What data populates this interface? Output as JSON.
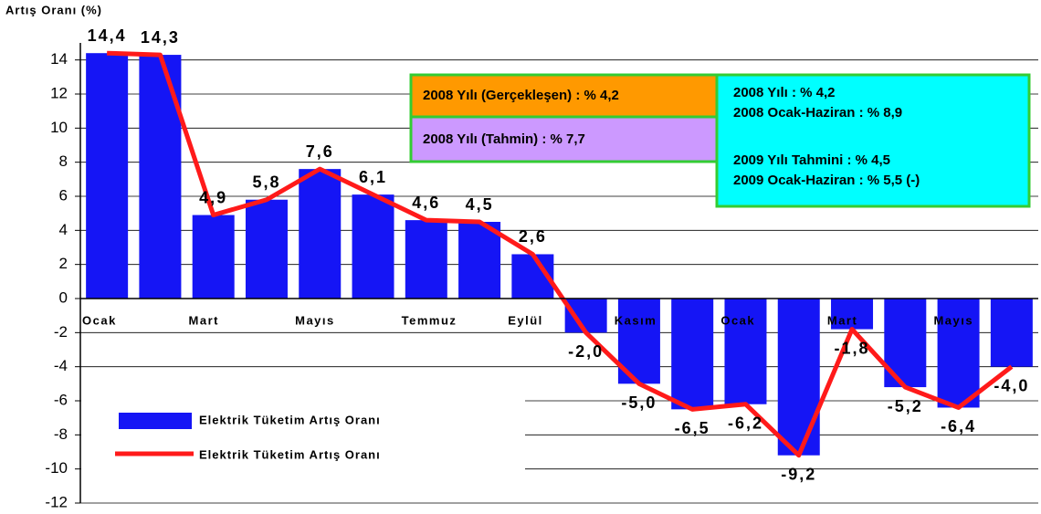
{
  "chart_data": {
    "type": "bar",
    "y_label": "Artış Oranı (%)",
    "categories": [
      "Ocak",
      null,
      "Mart",
      null,
      "Mayıs",
      null,
      "Temmuz",
      null,
      "Eylül",
      null,
      "Kasım",
      null,
      "Ocak",
      null,
      "Mart",
      null,
      "Mayıs",
      null
    ],
    "series": [
      {
        "name": "Elektrik Tüketim Artış Oranı",
        "type": "bar",
        "color": "#1515f5",
        "values": [
          14.4,
          14.3,
          4.9,
          5.8,
          7.6,
          6.1,
          4.6,
          4.5,
          2.6,
          -2.0,
          -5.0,
          -6.5,
          -6.2,
          -9.2,
          -1.8,
          -5.2,
          -6.4,
          -4.0
        ],
        "value_labels": [
          "14,4",
          "14,3",
          "4,9",
          "5,8",
          "7,6",
          "6,1",
          "4,6",
          "4,5",
          "2,6",
          "-2,0",
          "-5,0",
          "-6,5",
          "-6,2",
          "-9,2",
          "-1,8",
          "-5,2",
          "-6,4",
          "-4,0"
        ]
      },
      {
        "name": "Elektrik Tüketim Artış Oranı",
        "type": "line",
        "color": "#ff1a1a",
        "values": [
          14.4,
          14.3,
          4.9,
          5.8,
          7.6,
          6.1,
          4.6,
          4.5,
          2.6,
          -2.0,
          -5.0,
          -6.5,
          -6.2,
          -9.2,
          -1.8,
          -5.2,
          -6.4,
          -4.0
        ]
      }
    ],
    "ylim": [
      -12,
      15
    ],
    "yticks": [
      -12,
      -10,
      -8,
      -6,
      -4,
      -2,
      0,
      2,
      4,
      6,
      8,
      10,
      12,
      14
    ],
    "grid": true,
    "annotations": [
      {
        "text": "2008 Yılı (Gerçekleşen) : % 4,2",
        "color": "#ff9900"
      },
      {
        "text": "2008 Yılı (Tahmin) : % 7,7",
        "color": "#cc99ff"
      },
      {
        "lines": [
          "2008 Yılı : % 4,2",
          "2008 Ocak-Haziran : % 8,9",
          "2009 Yılı Tahmini  : % 4,5",
          "2009 Ocak-Haziran : % 5,5 (-)"
        ],
        "color": "#00ffff"
      }
    ]
  }
}
